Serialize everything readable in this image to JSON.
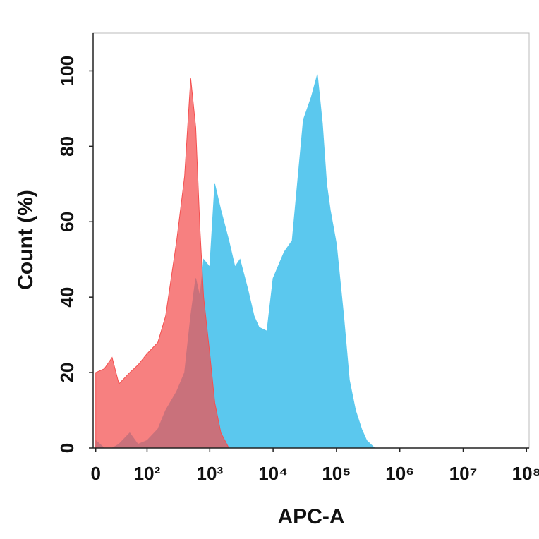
{
  "chart_data": {
    "type": "area",
    "x_label": "APC-A",
    "y_label": "Count  (%)",
    "x": [
      0,
      10,
      20,
      30,
      50,
      70,
      100,
      150,
      200,
      300,
      400,
      500,
      600,
      700,
      800,
      1000,
      1200,
      1500,
      2000,
      2500,
      3000,
      4000,
      5000,
      6000,
      8000,
      10000,
      15000,
      20000,
      30000,
      40000,
      50000,
      60000,
      70000,
      80000,
      100000,
      130000,
      160000,
      200000,
      250000,
      300000,
      400000,
      1000000,
      10000000,
      100000000
    ],
    "series": [
      {
        "color": "#5bc8ee",
        "values": [
          2,
          0,
          0,
          1,
          4,
          1,
          2,
          5,
          10,
          15,
          20,
          35,
          45,
          40,
          50,
          48,
          70,
          63,
          55,
          48,
          50,
          42,
          35,
          32,
          31,
          45,
          52,
          55,
          87,
          93,
          99,
          86,
          70,
          63,
          54,
          35,
          18,
          10,
          5,
          2,
          0,
          0,
          0,
          0
        ]
      },
      {
        "color": "#f44f4f",
        "values": [
          20,
          21,
          24,
          17,
          20,
          22,
          25,
          28,
          35,
          55,
          72,
          98,
          85,
          58,
          40,
          25,
          12,
          4,
          0,
          0,
          0,
          0,
          0,
          0,
          0,
          0,
          0,
          0,
          0,
          0,
          0,
          0,
          0,
          0,
          0,
          0,
          0,
          0,
          0,
          0,
          0,
          0,
          0,
          0
        ]
      }
    ],
    "xscale": "biexponential",
    "xlim": [
      -3,
      110000000
    ],
    "xticks": [
      0,
      {
        "value": 100,
        "label": "10²"
      },
      {
        "value": 1000,
        "label": "10³"
      },
      {
        "value": 10000,
        "label": "10⁴"
      },
      {
        "value": 100000,
        "label": "10⁵"
      },
      {
        "value": 1000000,
        "label": "10⁶"
      },
      {
        "value": 10000000,
        "label": "10⁷"
      },
      {
        "value": 100000000,
        "label": "10⁸"
      }
    ],
    "ylim": [
      0,
      110
    ],
    "yticks": [
      0,
      20,
      40,
      60,
      80,
      100
    ]
  }
}
